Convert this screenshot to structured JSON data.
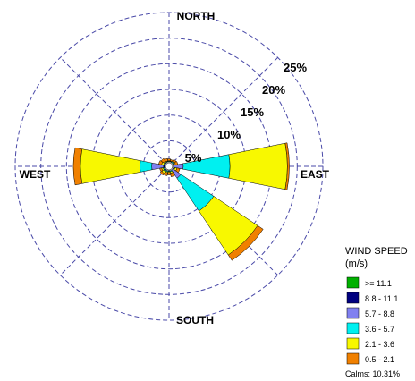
{
  "chart_data": {
    "type": "wind-rose",
    "unit": "%",
    "ring_values": [
      5,
      10,
      15,
      20,
      25
    ],
    "ring_labels": [
      "5%",
      "10%",
      "15%",
      "20%",
      "25%"
    ],
    "max_value": 30,
    "direction_labels": {
      "north": "NORTH",
      "south": "SOUTH",
      "east": "EAST",
      "west": "WEST"
    },
    "bins": [
      {
        "label": ">= 11.1",
        "color": "#00b000"
      },
      {
        "label": "8.8 - 11.1",
        "color": "#000080"
      },
      {
        "label": "5.7 - 8.8",
        "color": "#8080f0"
      },
      {
        "label": "3.6 - 5.7",
        "color": "#00f0f0"
      },
      {
        "label": "2.1 - 3.6",
        "color": "#f8f800"
      },
      {
        "label": "0.5 - 2.1",
        "color": "#f08000"
      }
    ],
    "legend": {
      "title_line1": "WIND SPEED",
      "title_line2": "(m/s)",
      "placement": "bottom-right"
    },
    "calms": "Calms: 10.31%",
    "sectors": [
      {
        "direction": "N",
        "cumulative": [
          0.0,
          0.0,
          0.0,
          0.1,
          0.2,
          0.6
        ]
      },
      {
        "direction": "NNE",
        "cumulative": [
          0.0,
          0.0,
          0.0,
          0.1,
          0.2,
          0.5
        ]
      },
      {
        "direction": "NE",
        "cumulative": [
          0.0,
          0.0,
          0.0,
          0.2,
          0.3,
          0.8
        ]
      },
      {
        "direction": "ENE",
        "cumulative": [
          0.0,
          0.0,
          0.1,
          0.2,
          0.4,
          0.9
        ]
      },
      {
        "direction": "E",
        "cumulative": [
          0.0,
          0.1,
          1.9,
          11.0,
          22.2,
          22.6
        ]
      },
      {
        "direction": "ESE",
        "cumulative": [
          0.0,
          0.0,
          0.1,
          0.3,
          0.7,
          1.3
        ]
      },
      {
        "direction": "SE",
        "cumulative": [
          0.0,
          0.0,
          1.9,
          9.6,
          19.9,
          21.2
        ]
      },
      {
        "direction": "SSE",
        "cumulative": [
          0.0,
          0.0,
          0.0,
          0.2,
          0.5,
          1.2
        ]
      },
      {
        "direction": "S",
        "cumulative": [
          0.0,
          0.0,
          0.0,
          0.1,
          0.3,
          0.8
        ]
      },
      {
        "direction": "SSW",
        "cumulative": [
          0.0,
          0.0,
          0.0,
          0.2,
          0.4,
          1.0
        ]
      },
      {
        "direction": "SW",
        "cumulative": [
          0.0,
          0.0,
          0.1,
          0.4,
          0.8,
          1.2
        ]
      },
      {
        "direction": "WSW",
        "cumulative": [
          0.0,
          0.0,
          0.1,
          0.3,
          0.6,
          1.0
        ]
      },
      {
        "direction": "W",
        "cumulative": [
          0.0,
          0.2,
          2.5,
          4.8,
          16.4,
          17.8
        ]
      },
      {
        "direction": "WNW",
        "cumulative": [
          0.0,
          0.0,
          0.0,
          0.2,
          0.6,
          1.2
        ]
      },
      {
        "direction": "NW",
        "cumulative": [
          0.0,
          0.0,
          0.0,
          0.1,
          0.4,
          1.0
        ]
      },
      {
        "direction": "NNW",
        "cumulative": [
          0.0,
          0.0,
          0.0,
          0.1,
          0.2,
          0.7
        ]
      }
    ]
  }
}
